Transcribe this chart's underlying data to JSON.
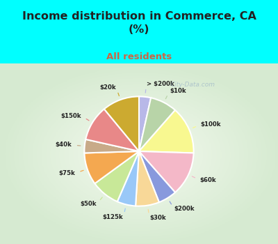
{
  "title": "Income distribution in Commerce, CA\n(%)",
  "subtitle": "All residents",
  "title_color": "#222222",
  "subtitle_color": "#cc6644",
  "bg_color": "#00ffff",
  "chart_bg_color": "#e8f5ee",
  "watermark": "City-Data.com",
  "labels": [
    "> $200k",
    "$10k",
    "$100k",
    "$60k",
    "$200k",
    "$30k",
    "$125k",
    "$50k",
    "$75k",
    "$40k",
    "$150k",
    "$20k"
  ],
  "values": [
    3.5,
    8.0,
    14.0,
    13.0,
    5.5,
    7.0,
    5.5,
    8.5,
    9.5,
    4.0,
    10.5,
    11.0
  ],
  "colors": [
    "#b8b8e8",
    "#b8d4a8",
    "#f8f890",
    "#f4b8c8",
    "#8899dd",
    "#f8d898",
    "#99c8f8",
    "#c8e898",
    "#f4a850",
    "#c8aa88",
    "#e88888",
    "#ccaa30"
  ],
  "start_angle": 90,
  "counterclock": false,
  "label_dist": 1.28,
  "wedge_edge_color": "white",
  "wedge_edge_width": 1.5
}
